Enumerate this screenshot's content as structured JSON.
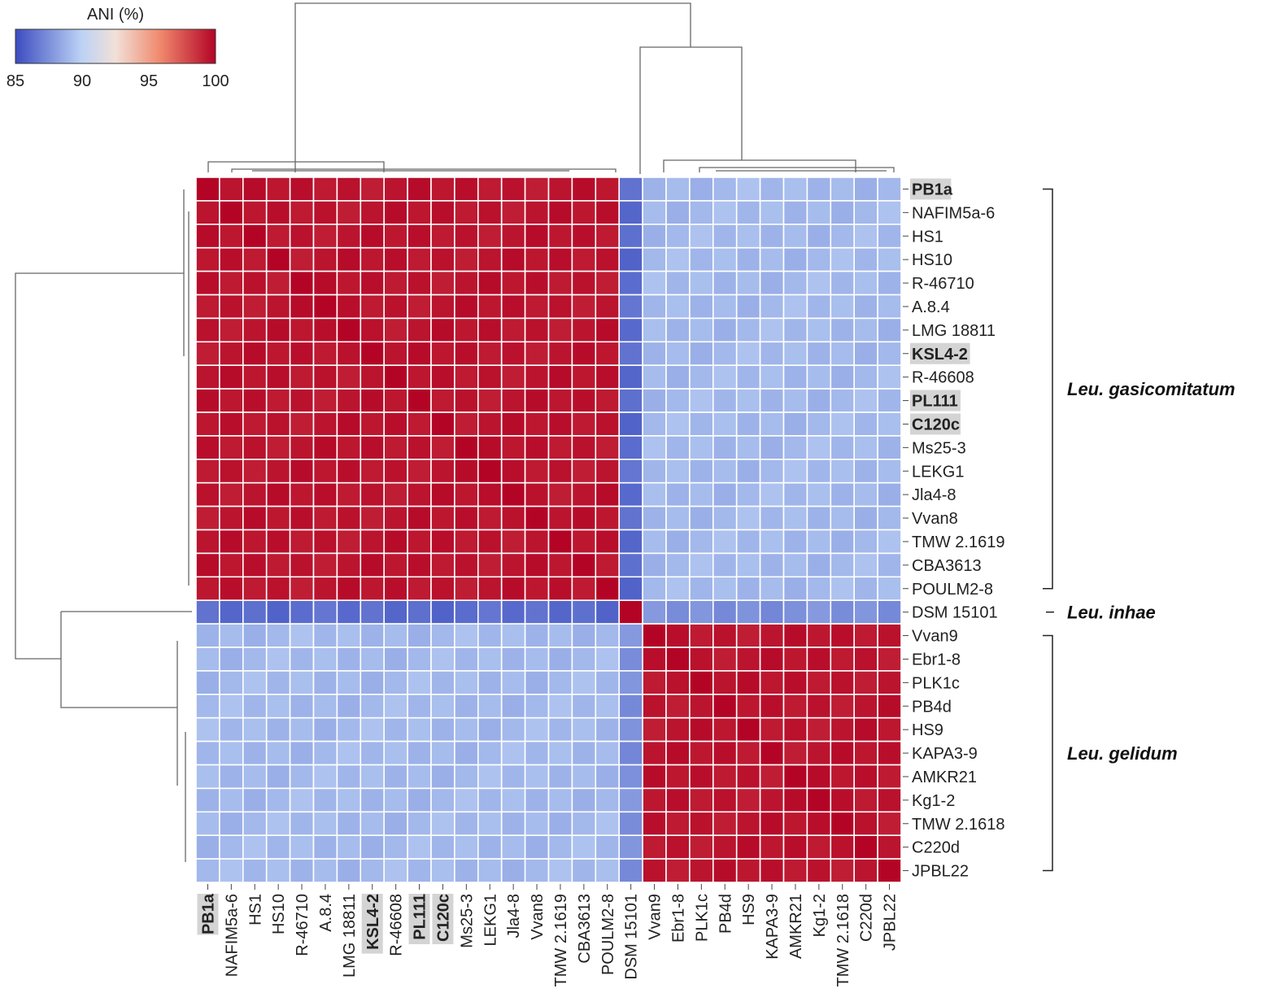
{
  "chart_data": {
    "type": "heatmap",
    "title": "",
    "value_label": "ANI (%)",
    "colorbar": {
      "ticks": [
        85,
        90,
        95,
        100
      ],
      "min": 85,
      "max": 100,
      "colors": [
        "#3b4cc0",
        "#bcd2f5",
        "#f1e0d8",
        "#f08a6e",
        "#b40426"
      ]
    },
    "labels": [
      "PB1a",
      "NAFIM5a-6",
      "HS1",
      "HS10",
      "R-46710",
      "A.8.4",
      "LMG 18811",
      "KSL4-2",
      "R-46608",
      "PL111",
      "C120c",
      "Ms25-3",
      "LEKG1",
      "Jla4-8",
      "Vvan8",
      "TMW 2.1619",
      "CBA3613",
      "POULM2-8",
      "DSM 15101",
      "Vvan9",
      "Ebr1-8",
      "PLK1c",
      "PB4d",
      "HS9",
      "KAPA3-9",
      "AMKR21",
      "Kg1-2",
      "TMW 2.1618",
      "C220d",
      "JPBL22"
    ],
    "highlighted": [
      "PB1a",
      "KSL4-2",
      "PL111",
      "C120c"
    ],
    "groups": [
      {
        "name": "Leu. gasicomitatum",
        "start": 0,
        "end": 17
      },
      {
        "name": "Leu. inhae",
        "start": 18,
        "end": 18
      },
      {
        "name": "Leu. gelidum",
        "start": 19,
        "end": 29
      }
    ],
    "block_values": {
      "gasicomitatum_within": 99.5,
      "gelidum_within": 99.5,
      "inhae_self": 100,
      "gasicomitatum_vs_gelidum": 89.0,
      "inhae_vs_gasicomitatum": 86.2,
      "inhae_vs_gelidum": 87.5
    }
  }
}
